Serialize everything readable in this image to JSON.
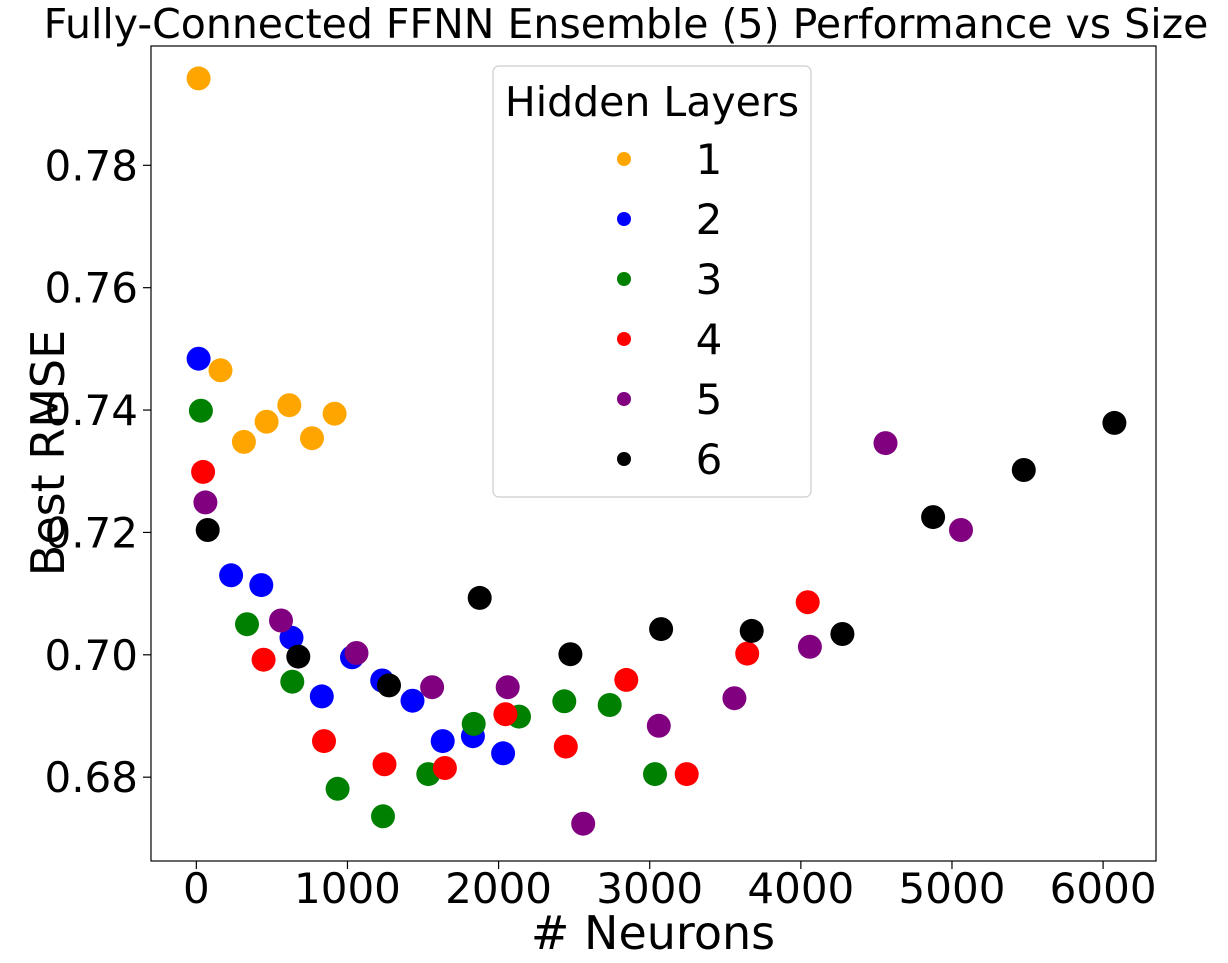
{
  "chart_data": {
    "type": "scatter",
    "title": "Fully-Connected FFNN Ensemble (5) Performance vs Size",
    "xlabel": "# Neurons",
    "ylabel": "Best RMSE",
    "xlim": [
      -300,
      6350
    ],
    "ylim": [
      0.6663,
      0.7995
    ],
    "xticks": [
      0,
      1000,
      2000,
      3000,
      4000,
      5000,
      6000
    ],
    "xtick_labels": [
      "0",
      "1000",
      "2000",
      "3000",
      "4000",
      "5000",
      "6000"
    ],
    "yticks": [
      0.68,
      0.7,
      0.72,
      0.74,
      0.76,
      0.78
    ],
    "ytick_labels": [
      "0.68",
      "0.70",
      "0.72",
      "0.74",
      "0.76",
      "0.78"
    ],
    "grid": false,
    "legend": {
      "title": "Hidden Layers",
      "placement": "top-center"
    },
    "series": [
      {
        "name": "1",
        "color": "#ffa500",
        "points": [
          [
            15,
            0.7942
          ],
          [
            160,
            0.7465
          ],
          [
            315,
            0.7348
          ],
          [
            465,
            0.7381
          ],
          [
            615,
            0.7408
          ],
          [
            765,
            0.7354
          ],
          [
            915,
            0.7394
          ]
        ]
      },
      {
        "name": "2",
        "color": "#0000ff",
        "points": [
          [
            15,
            0.7484
          ],
          [
            230,
            0.713
          ],
          [
            430,
            0.7114
          ],
          [
            630,
            0.7028
          ],
          [
            830,
            0.6932
          ],
          [
            1030,
            0.6996
          ],
          [
            1230,
            0.6958
          ],
          [
            1430,
            0.6925
          ],
          [
            1630,
            0.6859
          ],
          [
            1830,
            0.6867
          ],
          [
            2030,
            0.6839
          ]
        ]
      },
      {
        "name": "3",
        "color": "#008000",
        "points": [
          [
            30,
            0.7399
          ],
          [
            335,
            0.705
          ],
          [
            635,
            0.6956
          ],
          [
            935,
            0.6781
          ],
          [
            1235,
            0.6736
          ],
          [
            1535,
            0.6805
          ],
          [
            1835,
            0.6887
          ],
          [
            2135,
            0.6899
          ],
          [
            2435,
            0.6924
          ],
          [
            2735,
            0.6918
          ],
          [
            3035,
            0.6805
          ]
        ]
      },
      {
        "name": "4",
        "color": "#ff0000",
        "points": [
          [
            45,
            0.7299
          ],
          [
            445,
            0.6992
          ],
          [
            845,
            0.6859
          ],
          [
            1245,
            0.6821
          ],
          [
            1645,
            0.6815
          ],
          [
            2045,
            0.6903
          ],
          [
            2445,
            0.685
          ],
          [
            2845,
            0.6959
          ],
          [
            3245,
            0.6805
          ],
          [
            3645,
            0.7002
          ],
          [
            4045,
            0.7086
          ]
        ]
      },
      {
        "name": "5",
        "color": "#800080",
        "points": [
          [
            60,
            0.7249
          ],
          [
            560,
            0.7056
          ],
          [
            1060,
            0.7003
          ],
          [
            1560,
            0.6947
          ],
          [
            2060,
            0.6947
          ],
          [
            2560,
            0.6724
          ],
          [
            3060,
            0.6884
          ],
          [
            3560,
            0.6929
          ],
          [
            4060,
            0.7013
          ],
          [
            4560,
            0.7346
          ],
          [
            5060,
            0.7204
          ]
        ]
      },
      {
        "name": "6",
        "color": "#000000",
        "points": [
          [
            75,
            0.7204
          ],
          [
            675,
            0.6997
          ],
          [
            1275,
            0.695
          ],
          [
            1875,
            0.7093
          ],
          [
            2475,
            0.7001
          ],
          [
            3075,
            0.7042
          ],
          [
            3675,
            0.7039
          ],
          [
            4275,
            0.7034
          ],
          [
            4875,
            0.7225
          ],
          [
            5475,
            0.7302
          ],
          [
            6075,
            0.7379
          ]
        ]
      }
    ]
  }
}
